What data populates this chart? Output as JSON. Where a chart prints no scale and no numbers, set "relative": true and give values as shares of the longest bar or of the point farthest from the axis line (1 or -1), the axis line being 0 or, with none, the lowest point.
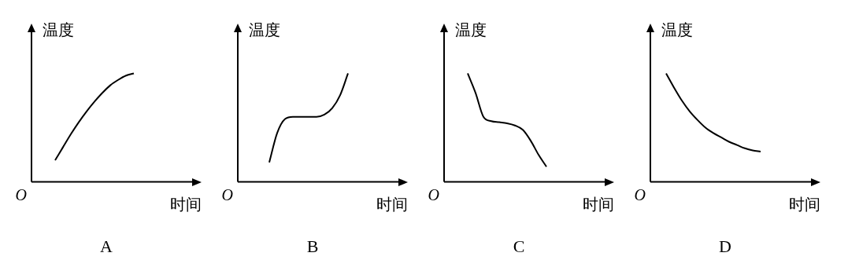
{
  "chart_data": [
    {
      "type": "line",
      "title": "A",
      "xlabel": "时间",
      "ylabel": "温度",
      "relative": true,
      "marker": "none",
      "grid": false,
      "legend": false,
      "tick_labels": false,
      "annotations": [
        "O"
      ],
      "categories": [
        null,
        null,
        null,
        null,
        null,
        null,
        null,
        null,
        null,
        null,
        null,
        null,
        null,
        null,
        null,
        null,
        null,
        null,
        null,
        null
      ],
      "color": "#000000",
      "values": [
        null,
        null,
        null,
        0.2,
        0.32,
        0.44,
        0.55,
        0.65,
        0.74,
        0.82,
        0.89,
        0.94,
        0.98,
        1,
        null,
        null,
        null,
        null,
        null,
        null
      ]
    },
    {
      "type": "line",
      "title": "B",
      "xlabel": "时间",
      "ylabel": "温度",
      "relative": true,
      "marker": "none",
      "grid": false,
      "legend": false,
      "tick_labels": false,
      "annotations": [
        "O"
      ],
      "categories": [
        null,
        null,
        null,
        null,
        null,
        null,
        null,
        null,
        null,
        null,
        null,
        null,
        null,
        null,
        null,
        null,
        null,
        null,
        null,
        null
      ],
      "color": "#000000",
      "values": [
        null,
        null,
        null,
        null,
        0.18,
        0.45,
        0.58,
        0.6,
        0.6,
        0.6,
        0.6,
        0.62,
        0.68,
        0.8,
        1,
        null,
        null,
        null,
        null,
        null
      ]
    },
    {
      "type": "line",
      "title": "C",
      "xlabel": "时间",
      "ylabel": "温度",
      "relative": true,
      "marker": "none",
      "grid": false,
      "legend": false,
      "tick_labels": false,
      "annotations": [
        "O"
      ],
      "categories": [
        null,
        null,
        null,
        null,
        null,
        null,
        null,
        null,
        null,
        null,
        null,
        null,
        null,
        null,
        null,
        null,
        null,
        null,
        null,
        null
      ],
      "color": "#000000",
      "values": [
        null,
        null,
        null,
        1,
        0.82,
        0.6,
        0.56,
        0.55,
        0.54,
        0.52,
        0.48,
        0.38,
        0.25,
        0.14,
        null,
        null,
        null,
        null,
        null,
        null
      ]
    },
    {
      "type": "line",
      "title": "D",
      "xlabel": "时间",
      "ylabel": "温度",
      "relative": true,
      "marker": "none",
      "grid": false,
      "legend": false,
      "tick_labels": false,
      "annotations": [
        "O"
      ],
      "categories": [
        null,
        null,
        null,
        null,
        null,
        null,
        null,
        null,
        null,
        null,
        null,
        null,
        null,
        null,
        null,
        null,
        null,
        null,
        null,
        null
      ],
      "color": "#000000",
      "values": [
        null,
        null,
        1,
        0.87,
        0.75,
        0.65,
        0.57,
        0.5,
        0.45,
        0.41,
        0.37,
        0.34,
        0.31,
        0.29,
        0.28,
        null,
        null,
        null,
        null,
        null
      ]
    }
  ]
}
